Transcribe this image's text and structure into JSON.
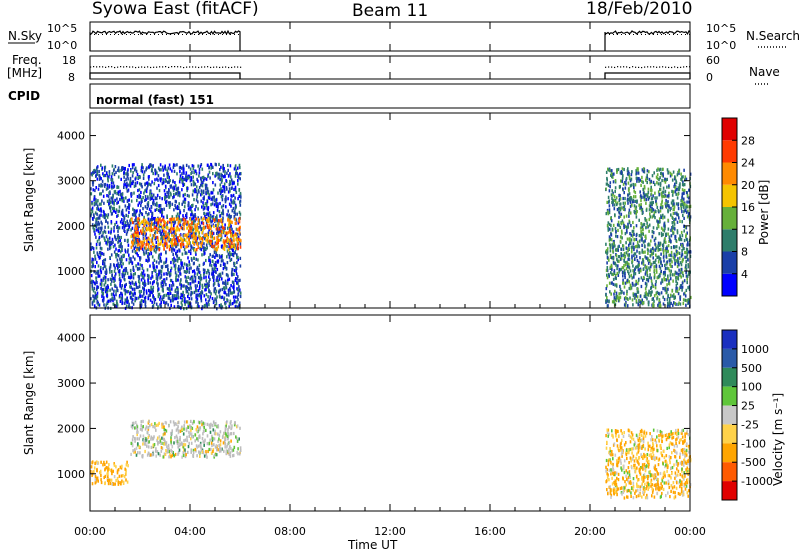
{
  "header": {
    "title": "Syowa East (fitACF)",
    "beam": "Beam 11",
    "date": "18/Feb/2010"
  },
  "panels": {
    "nsky": {
      "label": "N.Sky",
      "ticks": [
        "10^5",
        "10^0"
      ]
    },
    "nsearch": {
      "label": "N.Search",
      "ticks": [
        "10^5",
        "10^0"
      ],
      "style": "dotted"
    },
    "freq": {
      "label_line1": "Freq.",
      "label_line2": "[MHz]",
      "ticks": [
        "18",
        "8"
      ]
    },
    "nave": {
      "label": "Nave",
      "ticks": [
        "60",
        "0"
      ],
      "style": "dotted"
    },
    "cpid": {
      "label": "CPID",
      "text": "normal (fast) 151"
    }
  },
  "colors": {
    "power": [
      "#0000ff",
      "#1a3fa8",
      "#2e7d6b",
      "#66b03a",
      "#f5c400",
      "#ff8a00",
      "#ff3a00",
      "#e00000"
    ],
    "velocity": [
      "#e00000",
      "#ff5a00",
      "#ffa500",
      "#ffd24a",
      "#c8c8c8",
      "#5fc63a",
      "#2f8a5a",
      "#2a5aa8",
      "#1a2fbf"
    ],
    "ground_scatter": "#bdbdbd"
  },
  "chart_data": [
    {
      "type": "heatmap",
      "name": "power",
      "ylabel": "Slant Range [km]",
      "xlim": [
        "00:00",
        "24:00"
      ],
      "ylim": [
        180,
        4500
      ],
      "yticks": [
        1000,
        2000,
        3000,
        4000
      ],
      "colorbar": {
        "label": "Power [dB]",
        "ticks": [
          "4",
          "8",
          "12",
          "16",
          "20",
          "24",
          "28"
        ],
        "range": [
          0,
          32
        ]
      },
      "data_intervals_hours": [
        [
          0,
          6.0
        ],
        [
          20.6,
          24.0
        ]
      ],
      "regions": [
        {
          "t0": 0.0,
          "t1": 6.0,
          "r0": 200,
          "r1": 3400,
          "typical_power": 6
        },
        {
          "t0": 1.6,
          "t1": 6.0,
          "r0": 1500,
          "r1": 2200,
          "typical_power": 22
        },
        {
          "t0": 20.6,
          "t1": 24.0,
          "r0": 250,
          "r1": 3300,
          "typical_power": 10
        }
      ]
    },
    {
      "type": "heatmap",
      "name": "velocity",
      "ylabel": "Slant Range [km]",
      "xlabel": "Time UT",
      "xticks": [
        "00:00",
        "04:00",
        "08:00",
        "12:00",
        "16:00",
        "20:00",
        "00:00"
      ],
      "ylim": [
        180,
        4500
      ],
      "yticks": [
        1000,
        2000,
        3000,
        4000
      ],
      "colorbar": {
        "label": "Velocity [m s⁻¹]",
        "ticks": [
          "1000",
          "500",
          "100",
          "25",
          "-25",
          "-100",
          "-500",
          "-1000"
        ]
      },
      "data_intervals_hours": [
        [
          0,
          6.0
        ],
        [
          20.6,
          24.0
        ]
      ],
      "regions": [
        {
          "t0": 0.0,
          "t1": 1.5,
          "r0": 800,
          "r1": 1300,
          "typical_velocity": -150
        },
        {
          "t0": 1.6,
          "t1": 6.0,
          "r0": 1400,
          "r1": 2200,
          "typical_velocity": 0
        },
        {
          "t0": 20.6,
          "t1": 24.0,
          "r0": 500,
          "r1": 2000,
          "typical_velocity": -100
        }
      ]
    }
  ]
}
